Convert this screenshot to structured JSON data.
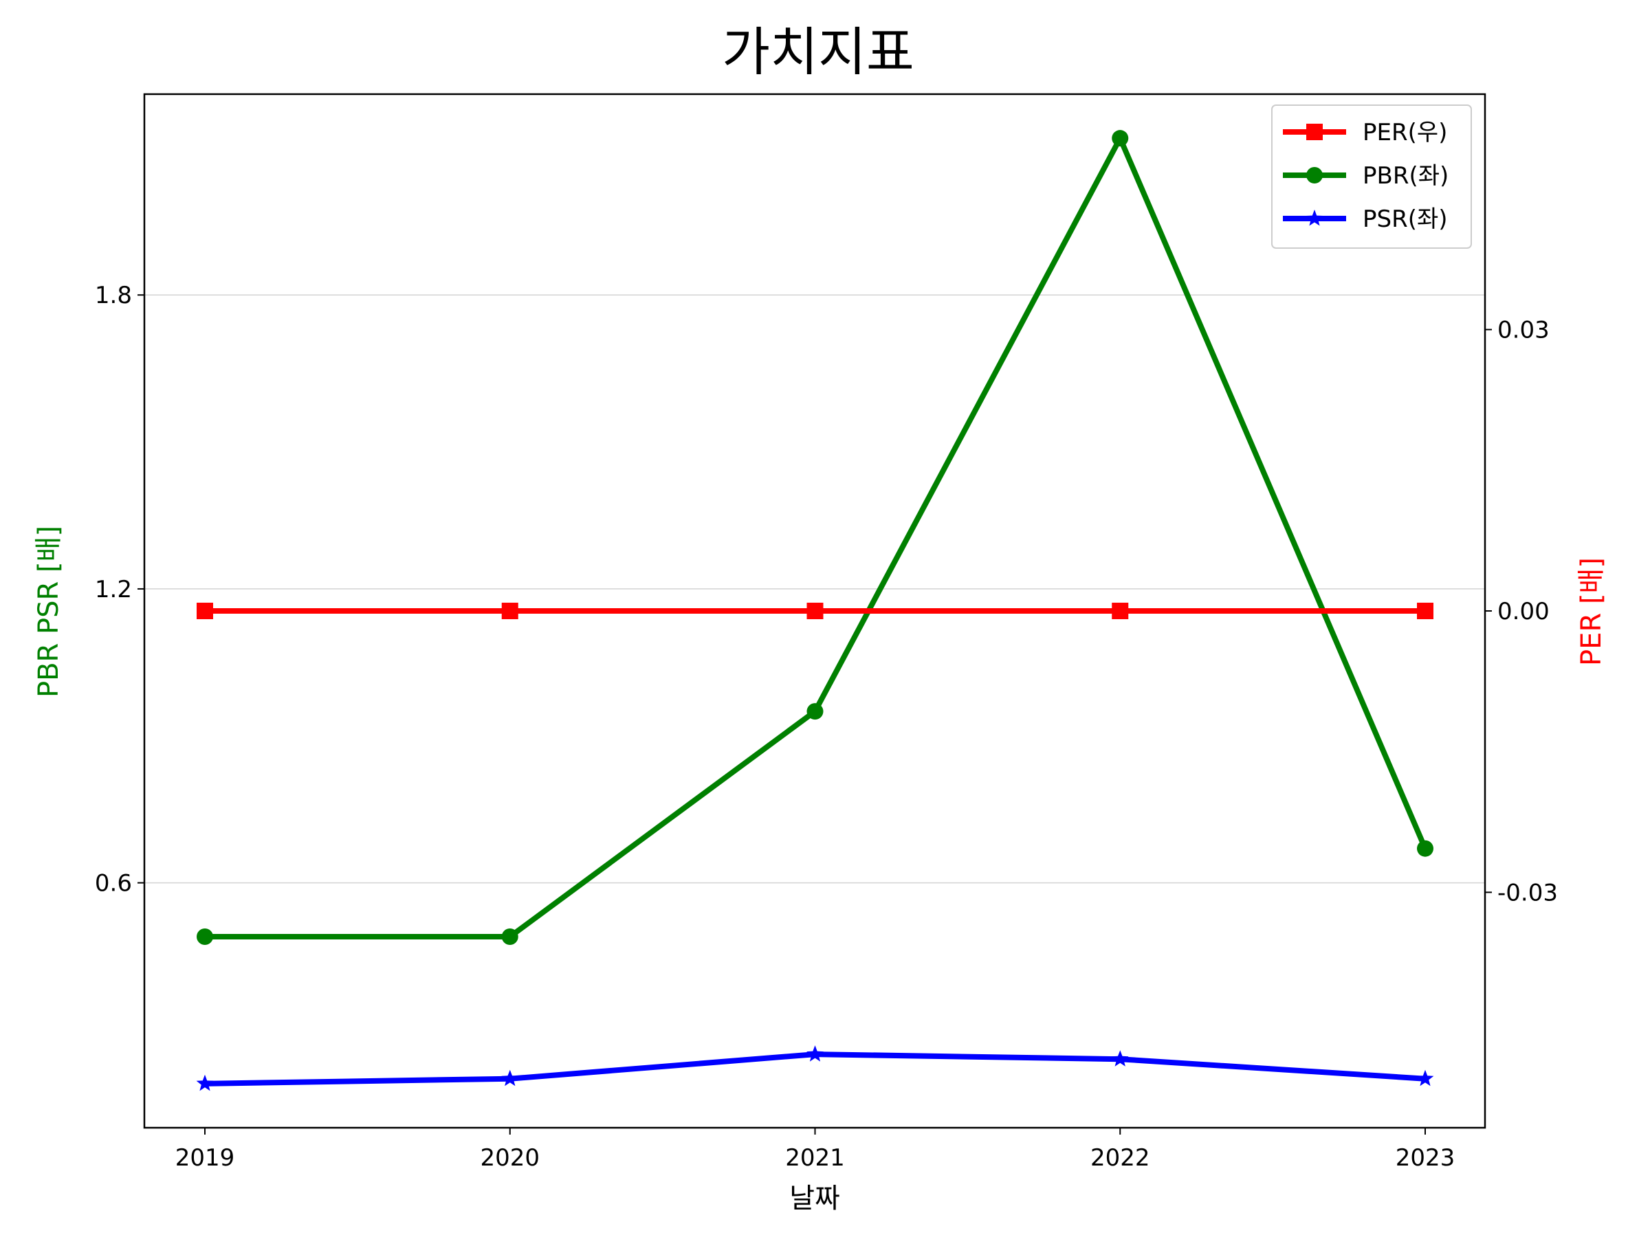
{
  "chart_data": {
    "type": "line",
    "title": "가치지표",
    "xlabel": "날짜",
    "ylabel_left": "PBR PSR [배]",
    "ylabel_right": "PER [배]",
    "categories": [
      "2019",
      "2020",
      "2021",
      "2022",
      "2023"
    ],
    "y_left": {
      "ylim": [
        0.1,
        2.21
      ],
      "ticks": [
        0.6,
        1.2,
        1.8
      ],
      "tick_labels": [
        "0.6",
        "1.2",
        "1.8"
      ]
    },
    "y_right": {
      "ylim": [
        -0.0551,
        0.0551
      ],
      "ticks": [
        -0.03,
        0.0,
        0.03
      ],
      "tick_labels": [
        "-0.03",
        "0.00",
        "0.03"
      ]
    },
    "grid": true,
    "legend_position": "top-right",
    "series": [
      {
        "name": "PER(우)",
        "axis": "right",
        "color": "#ff0000",
        "marker": "square",
        "values": [
          0,
          0,
          0,
          0,
          0
        ]
      },
      {
        "name": "PBR(좌)",
        "axis": "left",
        "color": "#008000",
        "marker": "circle",
        "values": [
          0.49,
          0.49,
          0.95,
          2.12,
          0.67
        ]
      },
      {
        "name": "PSR(좌)",
        "axis": "left",
        "color": "#0000ff",
        "marker": "star",
        "values": [
          0.19,
          0.2,
          0.25,
          0.24,
          0.2
        ]
      }
    ]
  }
}
